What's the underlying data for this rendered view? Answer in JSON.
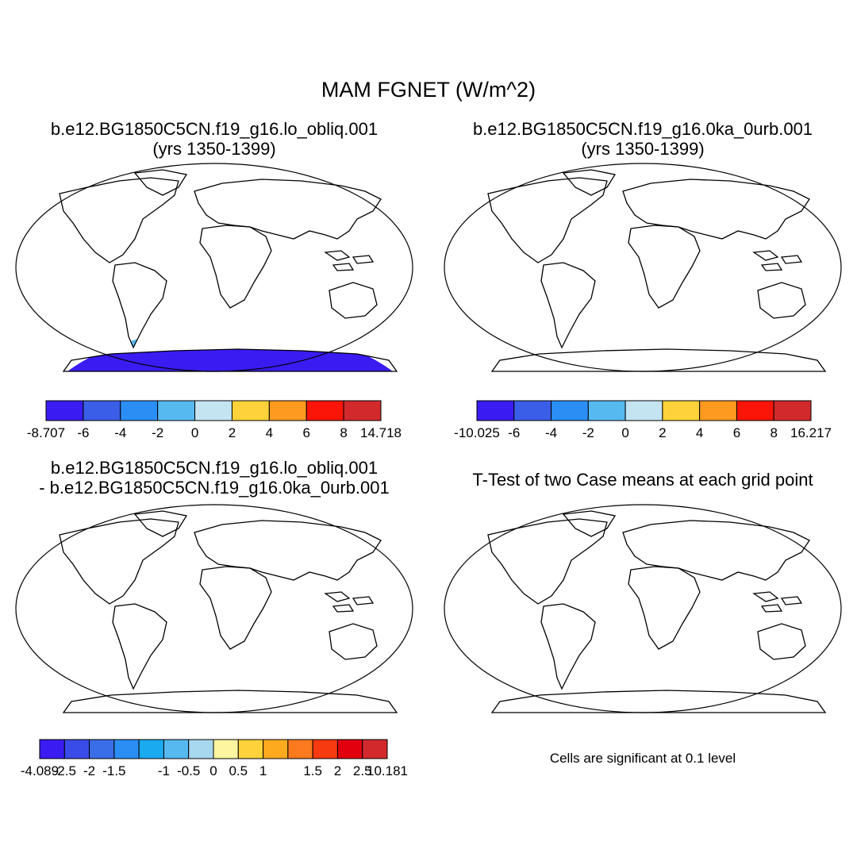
{
  "title": "MAM FGNET (W/m^2)",
  "panels": [
    {
      "title_line1": "b.e12.BG1850C5CN.f19_g16.lo_obliq.001",
      "title_line2": "(yrs 1350-1399)"
    },
    {
      "title_line1": "b.e12.BG1850C5CN.f19_g16.0ka_0urb.001",
      "title_line2": "(yrs 1350-1399)"
    },
    {
      "title_line1": "b.e12.BG1850C5CN.f19_g16.lo_obliq.001",
      "title_line2": "- b.e12.BG1850C5CN.f19_g16.0ka_0urb.001"
    },
    {
      "title_line1": "T-Test of two Case means at each grid point",
      "title_line2": ""
    }
  ],
  "colorbars": [
    {
      "labels": [
        "-8.707",
        "-6",
        "-4",
        "-2",
        "0",
        "2",
        "4",
        "6",
        "8",
        "14.718"
      ],
      "colors": [
        "#3a1cf2",
        "#3a5ee8",
        "#2b8ef5",
        "#56b9f0",
        "#c4e4f2",
        "#fdd23a",
        "#fd9a1f",
        "#fb1509",
        "#d22a2c"
      ]
    },
    {
      "labels": [
        "-10.025",
        "-6",
        "-4",
        "-2",
        "0",
        "2",
        "4",
        "6",
        "8",
        "16.217"
      ],
      "colors": [
        "#3a1cf2",
        "#3a5ee8",
        "#2b8ef5",
        "#56b9f0",
        "#c4e4f2",
        "#fdd23a",
        "#fd9a1f",
        "#fb1509",
        "#d22a2c"
      ]
    },
    {
      "labels": [
        "-4.089",
        "-2.5",
        "-2",
        "-1.5",
        "-1",
        "-0.5",
        "0",
        "0.5",
        "1",
        "1.5",
        "2",
        "2.5",
        "10.181"
      ],
      "colors": [
        "#3a1cf2",
        "#3a4ce8",
        "#3a6ee8",
        "#2b8ef5",
        "#1aaaf0",
        "#56b9f0",
        "#a8d8f0",
        "#fdf5a0",
        "#fdd23a",
        "#fdaa1f",
        "#fd7a1f",
        "#f83a10",
        "#e2000e",
        "#d22a2c"
      ]
    }
  ],
  "significance_note": "Cells are significant at 0.1 level",
  "colors": {
    "land_outline": "#000000",
    "significant": "#e8000e"
  }
}
